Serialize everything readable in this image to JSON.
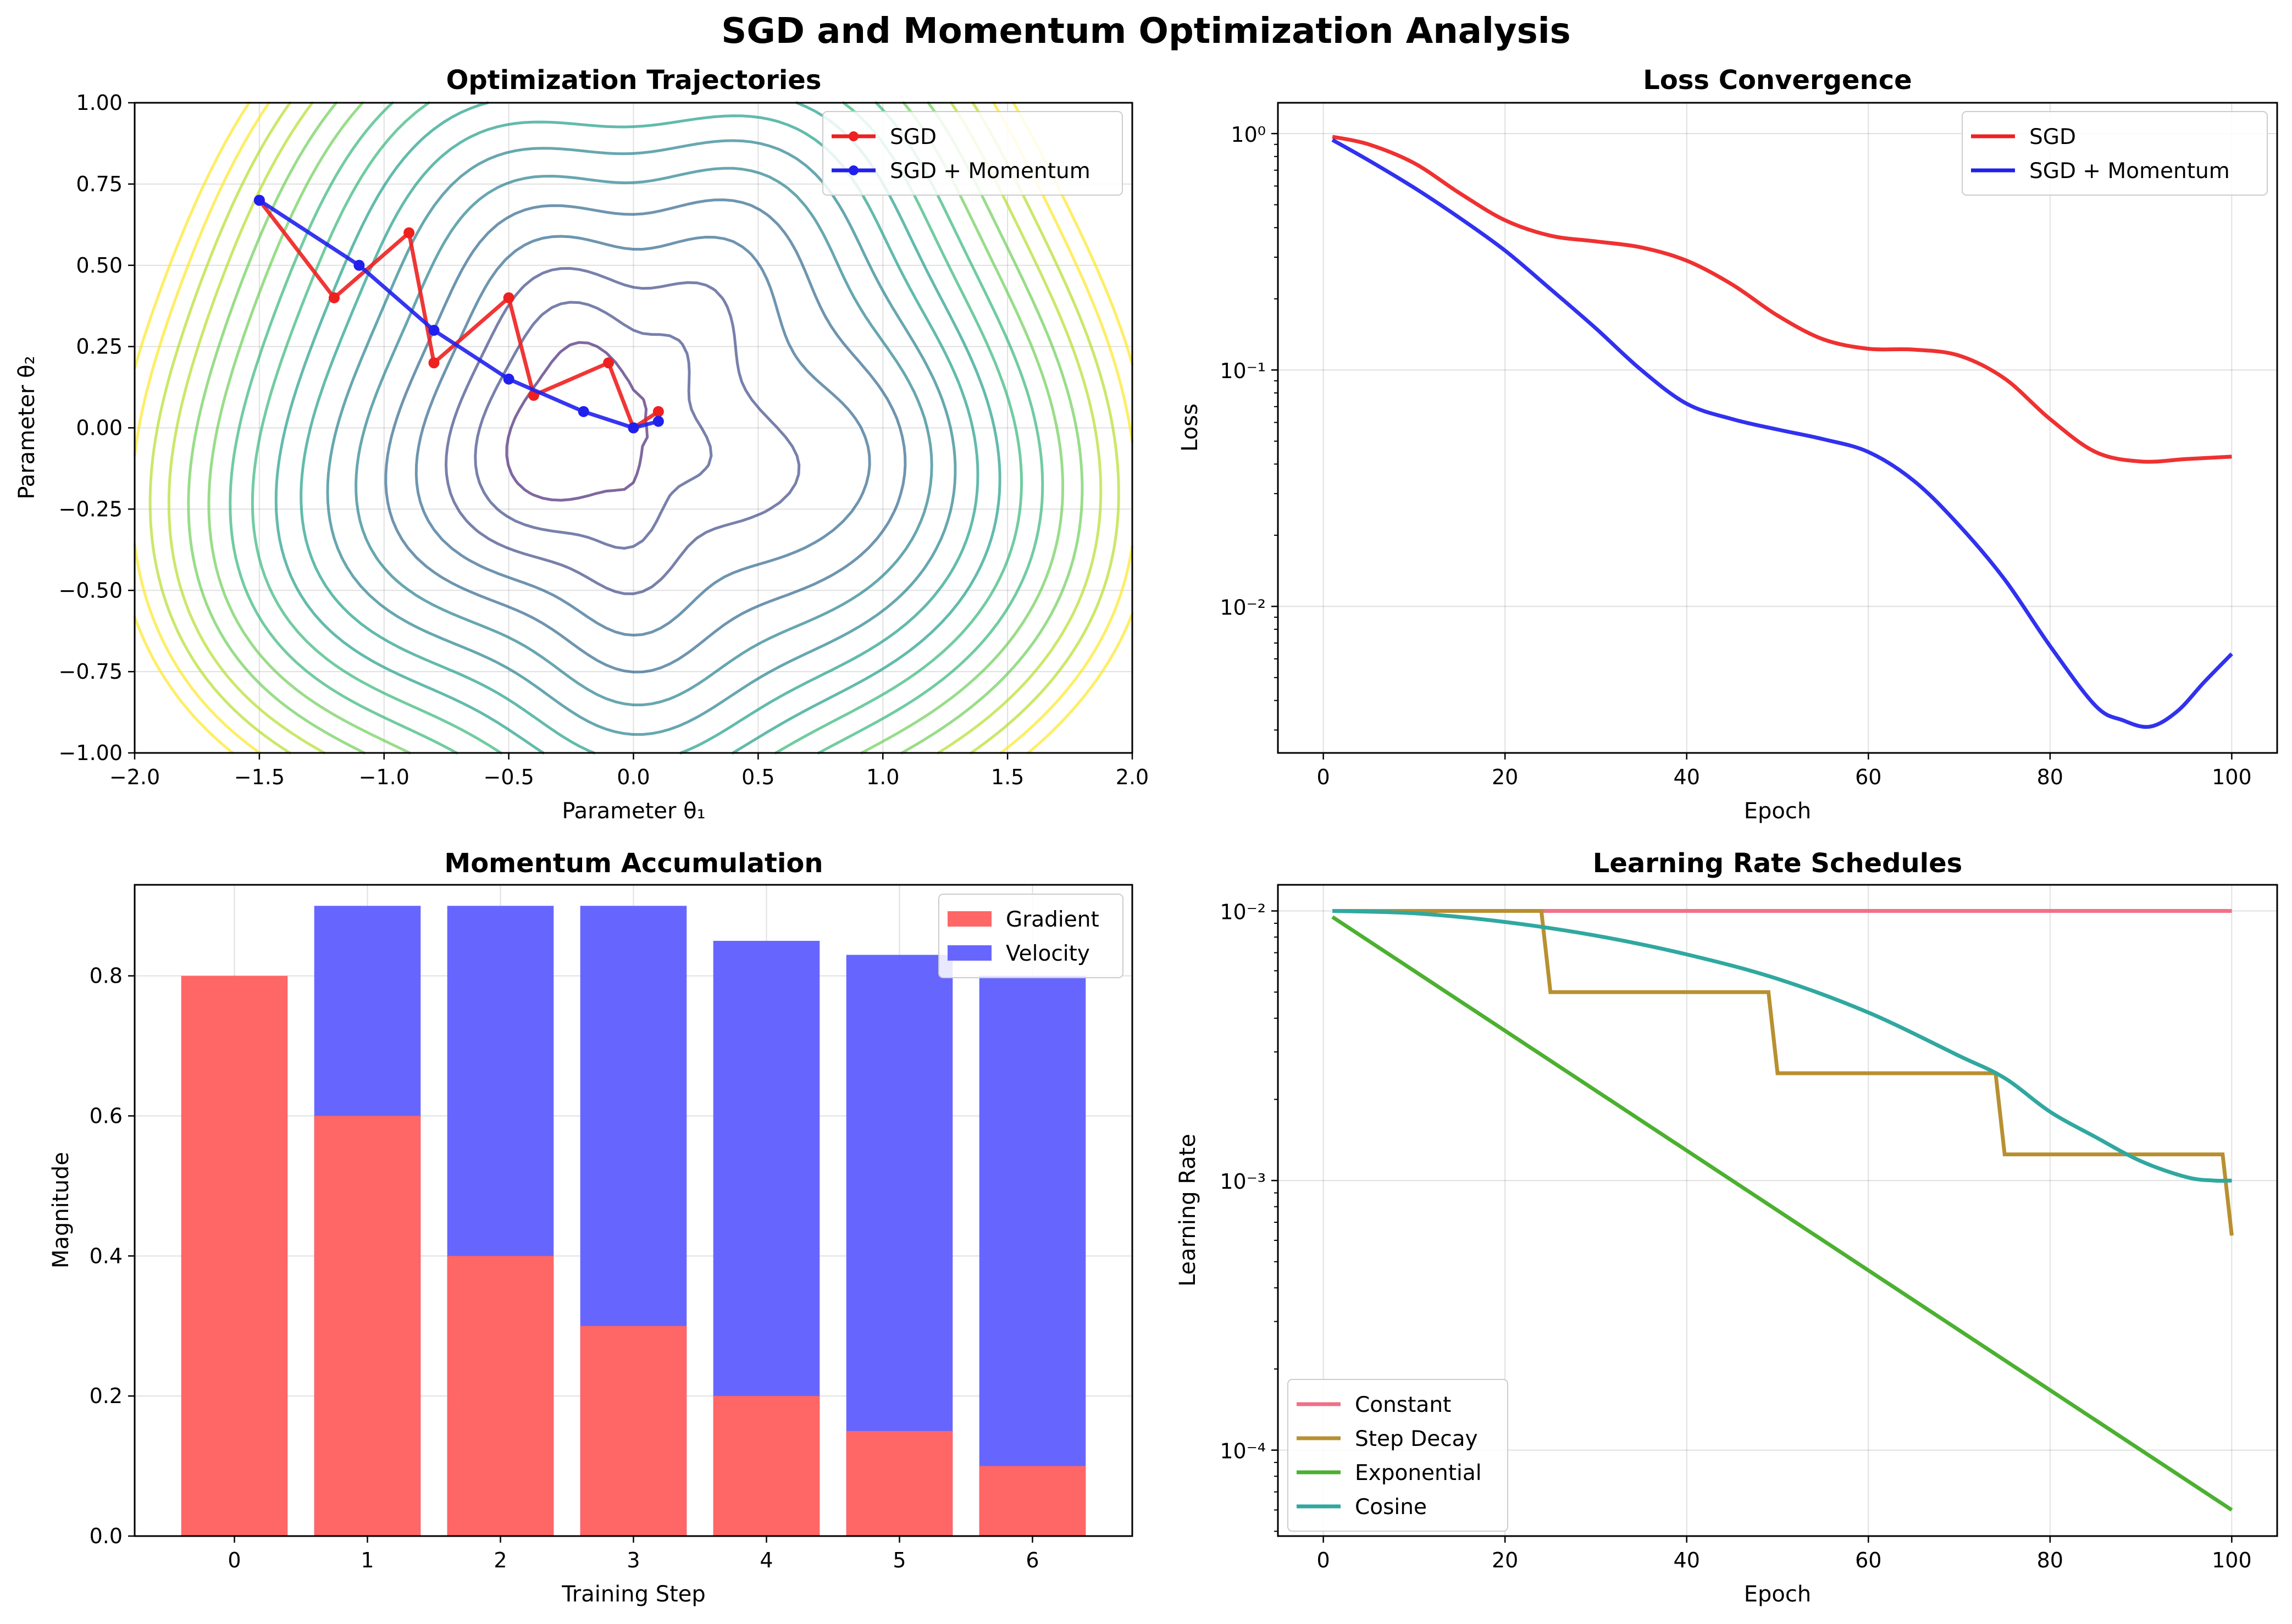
{
  "figure": {
    "title": "SGD and Momentum Optimization Analysis"
  },
  "chart_data": [
    {
      "type": "line",
      "title": "Optimization Trajectories",
      "xlabel": "Parameter θ₁",
      "ylabel": "Parameter θ₂",
      "xlim": [
        -2.0,
        2.0
      ],
      "ylim": [
        -1.0,
        1.0
      ],
      "x_ticks": [
        "−2.0",
        "−1.5",
        "−1.0",
        "−0.5",
        "0.0",
        "0.5",
        "1.0",
        "1.5",
        "2.0"
      ],
      "y_ticks": [
        "−1.00",
        "−0.75",
        "−0.50",
        "−0.25",
        "0.00",
        "0.25",
        "0.50",
        "0.75",
        "1.00"
      ],
      "grid": true,
      "legend_position": "top-right",
      "background": "contour plot of loss surface (viridis colormap)",
      "series": [
        {
          "name": "SGD",
          "color": "#ee2020",
          "x": [
            -1.5,
            -1.2,
            -0.9,
            -0.8,
            -0.5,
            -0.4,
            -0.1,
            0.0,
            0.1
          ],
          "y": [
            0.7,
            0.4,
            0.6,
            0.2,
            0.4,
            0.1,
            0.2,
            0.0,
            0.05
          ]
        },
        {
          "name": "SGD + Momentum",
          "color": "#2020ee",
          "x": [
            -1.5,
            -1.1,
            -0.8,
            -0.5,
            -0.2,
            0.0,
            0.1
          ],
          "y": [
            0.7,
            0.5,
            0.3,
            0.15,
            0.05,
            0.0,
            0.02
          ]
        }
      ]
    },
    {
      "type": "line",
      "title": "Loss Convergence",
      "xlabel": "Epoch",
      "ylabel": "Loss",
      "yscale": "log",
      "xlim": [
        -5,
        105
      ],
      "ylim": [
        0.0024,
        1.35
      ],
      "x_ticks": [
        "0",
        "20",
        "40",
        "60",
        "80",
        "100"
      ],
      "y_ticks": [
        "10⁰",
        "10⁻¹",
        "10⁻²"
      ],
      "grid": true,
      "legend_position": "top-right",
      "series": [
        {
          "name": "SGD",
          "color": "#ee2020",
          "x": [
            1,
            5,
            10,
            15,
            20,
            25,
            30,
            35,
            40,
            45,
            50,
            55,
            60,
            65,
            70,
            75,
            80,
            85,
            90,
            95,
            100
          ],
          "y": [
            0.97,
            0.9,
            0.75,
            0.56,
            0.43,
            0.37,
            0.35,
            0.33,
            0.29,
            0.23,
            0.17,
            0.135,
            0.123,
            0.122,
            0.115,
            0.092,
            0.062,
            0.045,
            0.041,
            0.042,
            0.043
          ]
        },
        {
          "name": "SGD + Momentum",
          "color": "#2020ee",
          "x": [
            1,
            5,
            10,
            15,
            20,
            25,
            30,
            35,
            40,
            45,
            50,
            55,
            60,
            65,
            70,
            75,
            80,
            85,
            88,
            91,
            94,
            97,
            100
          ],
          "y": [
            0.94,
            0.77,
            0.59,
            0.44,
            0.32,
            0.22,
            0.15,
            0.1,
            0.072,
            0.062,
            0.056,
            0.051,
            0.045,
            0.034,
            0.022,
            0.013,
            0.0068,
            0.0038,
            0.0033,
            0.0031,
            0.0036,
            0.0048,
            0.0063
          ]
        }
      ]
    },
    {
      "type": "bar",
      "title": "Momentum Accumulation",
      "xlabel": "Training Step",
      "ylabel": "Magnitude",
      "categories": [
        "0",
        "1",
        "2",
        "3",
        "4",
        "5",
        "6"
      ],
      "ylim": [
        0,
        0.93
      ],
      "y_ticks": [
        "0.0",
        "0.2",
        "0.4",
        "0.6",
        "0.8"
      ],
      "grid": true,
      "legend_position": "top-right",
      "series": [
        {
          "name": "Gradient",
          "color": "#ff6666",
          "values": [
            0.8,
            0.6,
            0.4,
            0.3,
            0.2,
            0.15,
            0.1
          ]
        },
        {
          "name": "Velocity",
          "color": "#6666ff",
          "values": [
            0.0,
            0.9,
            0.9,
            0.9,
            0.85,
            0.83,
            0.8
          ]
        }
      ]
    },
    {
      "type": "line",
      "title": "Learning Rate Schedules",
      "xlabel": "Epoch",
      "ylabel": "Learning Rate",
      "yscale": "log",
      "xlim": [
        -5,
        105
      ],
      "ylim": [
        4.8e-05,
        0.0125
      ],
      "x_ticks": [
        "0",
        "20",
        "40",
        "60",
        "80",
        "100"
      ],
      "y_ticks": [
        "10⁻²",
        "10⁻³",
        "10⁻⁴"
      ],
      "grid": true,
      "legend_position": "bottom-left",
      "series": [
        {
          "name": "Constant",
          "color": "#f07088",
          "x": [
            1,
            100
          ],
          "y": [
            0.01,
            0.01
          ]
        },
        {
          "name": "Step Decay",
          "color": "#b89030",
          "x": [
            1,
            24,
            25,
            49,
            50,
            74,
            75,
            99,
            100
          ],
          "y": [
            0.01,
            0.01,
            0.005,
            0.005,
            0.0025,
            0.0025,
            0.00125,
            0.00125,
            0.000625
          ]
        },
        {
          "name": "Exponential",
          "color": "#4cb030",
          "x": [
            1,
            100
          ],
          "y": [
            0.0095,
            6e-05
          ]
        },
        {
          "name": "Cosine",
          "color": "#30a8a0",
          "x": [
            1,
            10,
            20,
            30,
            40,
            50,
            60,
            70,
            75,
            80,
            85,
            90,
            95,
            98,
            100
          ],
          "y": [
            0.01,
            0.0098,
            0.0091,
            0.0081,
            0.0069,
            0.0056,
            0.0042,
            0.0029,
            0.0024,
            0.0018,
            0.00145,
            0.00118,
            0.00103,
            0.001,
            0.001
          ]
        }
      ]
    }
  ]
}
